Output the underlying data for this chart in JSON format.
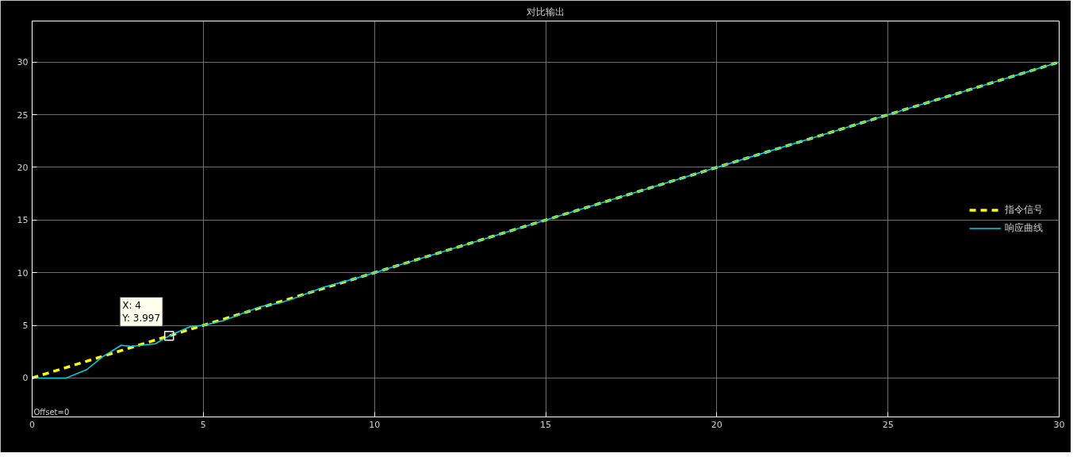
{
  "chart_data": {
    "type": "line",
    "title": "对比输出",
    "series": [
      {
        "name": "指令信号",
        "color": "#ffff00",
        "line_style": "dashed",
        "x": [
          0,
          30
        ],
        "values": [
          0,
          30
        ]
      },
      {
        "name": "响应曲线",
        "color": "#00d8e0",
        "line_style": "solid",
        "x": [
          0,
          1.0,
          1.6,
          2.05,
          2.6,
          2.9,
          3.6,
          4.0,
          4.6,
          5.0,
          5.6,
          6.2,
          6.7,
          7.2,
          7.6,
          8.5,
          9.5,
          10,
          30
        ],
        "values": [
          0,
          0,
          0.8,
          2.0,
          3.1,
          3.0,
          3.25,
          4.0,
          4.85,
          5.0,
          5.45,
          6.2,
          6.8,
          7.1,
          7.5,
          8.6,
          9.5,
          10,
          30
        ]
      }
    ],
    "xlim": [
      0,
      30
    ],
    "ylim": [
      -3.7,
      33.9
    ],
    "xticks": [
      0,
      5,
      10,
      15,
      20,
      25,
      30
    ],
    "yticks": [
      0,
      5,
      10,
      15,
      20,
      25,
      30
    ],
    "grid": true,
    "legend": "right",
    "marker": "none",
    "annotations": [
      {
        "text": "X: 4\nY: 3.997",
        "x": 4,
        "y": 3.997
      },
      "Offset=0"
    ]
  }
}
